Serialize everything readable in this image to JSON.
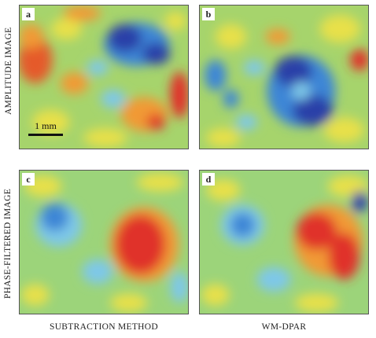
{
  "rows": {
    "top": "AMPLITUDE IMAGE",
    "bottom": "PHASE-FILTERED IMAGE"
  },
  "columns": {
    "left": "SUBTRACTION METHOD",
    "right": "WM-DPAR"
  },
  "panels": {
    "a": "a",
    "b": "b",
    "c": "c",
    "d": "d"
  },
  "scale_bar": {
    "label": "1 mm",
    "length_mm": 1
  },
  "colormap": [
    "#2b3fa8",
    "#3c86d6",
    "#7ec8e8",
    "#9cd47a",
    "#e8e04a",
    "#f19a34",
    "#e0312b"
  ]
}
